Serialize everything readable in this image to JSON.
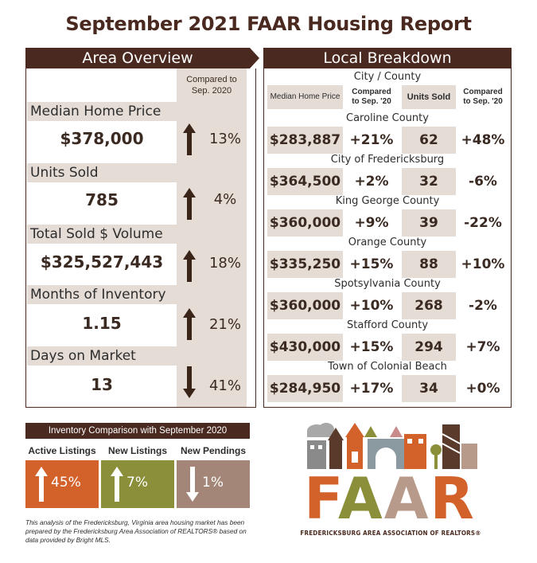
{
  "title": "September 2021 FAAR Housing Report",
  "overview": {
    "heading": "Area Overview",
    "compared_label": "Compared to Sep. 2020",
    "metrics": [
      {
        "label": "Median Home Price",
        "value": "$378,000",
        "pct": "13%",
        "direction": "up"
      },
      {
        "label": "Units Sold",
        "value": "785",
        "pct": "4%",
        "direction": "up"
      },
      {
        "label": "Total Sold $ Volume",
        "value": "$325,527,443",
        "pct": "18%",
        "direction": "up"
      },
      {
        "label": "Months of Inventory",
        "value": "1.15",
        "pct": "21%",
        "direction": "up"
      },
      {
        "label": "Days on Market",
        "value": "13",
        "pct": "41%",
        "direction": "down"
      }
    ]
  },
  "breakdown": {
    "heading": "Local Breakdown",
    "city_header": "City / County",
    "columns": [
      "Median Home Price",
      "Compared to Sep. '20",
      "Units Sold",
      "Compared to Sep. '20"
    ],
    "rows": [
      {
        "name": "Caroline County",
        "price": "$283,887",
        "price_pct": "+21%",
        "units": "62",
        "units_pct": "+48%"
      },
      {
        "name": "City of Fredericksburg",
        "price": "$364,500",
        "price_pct": "+2%",
        "units": "32",
        "units_pct": "-6%"
      },
      {
        "name": "King George County",
        "price": "$360,000",
        "price_pct": "+9%",
        "units": "39",
        "units_pct": "-22%"
      },
      {
        "name": "Orange County",
        "price": "$335,250",
        "price_pct": "+15%",
        "units": "88",
        "units_pct": "+10%"
      },
      {
        "name": "Spotsylvania County",
        "price": "$360,000",
        "price_pct": "+10%",
        "units": "268",
        "units_pct": "-2%"
      },
      {
        "name": "Stafford County",
        "price": "$430,000",
        "price_pct": "+15%",
        "units": "294",
        "units_pct": "+7%"
      },
      {
        "name": "Town of Colonial Beach",
        "price": "$284,950",
        "price_pct": "+17%",
        "units": "34",
        "units_pct": "+0%"
      }
    ]
  },
  "inventory": {
    "heading": "Inventory Comparison with September 2020",
    "items": [
      {
        "label": "Active Listings",
        "pct": "45%",
        "direction": "up",
        "color": "#d3612a"
      },
      {
        "label": "New Listings",
        "pct": "7%",
        "direction": "up",
        "color": "#8b8f3a"
      },
      {
        "label": "New Pendings",
        "pct": "1%",
        "direction": "down",
        "color": "#a38677"
      }
    ]
  },
  "note": "This analysis of the Fredericksburg, Virginia area housing market has been prepared by the Fredericksburg Area Association of REALTORS® based on data provided by Bright MLS.",
  "logo": {
    "letters": [
      "F",
      "A",
      "A",
      "R"
    ],
    "subtitle": "FREDERICKSBURG AREA ASSOCIATION OF REALTORS®"
  },
  "colors": {
    "brown": "#4a2a20",
    "light_bg": "#e5dcd6",
    "orange": "#d3612a",
    "olive": "#8b8f3a",
    "taupe": "#a38677"
  }
}
